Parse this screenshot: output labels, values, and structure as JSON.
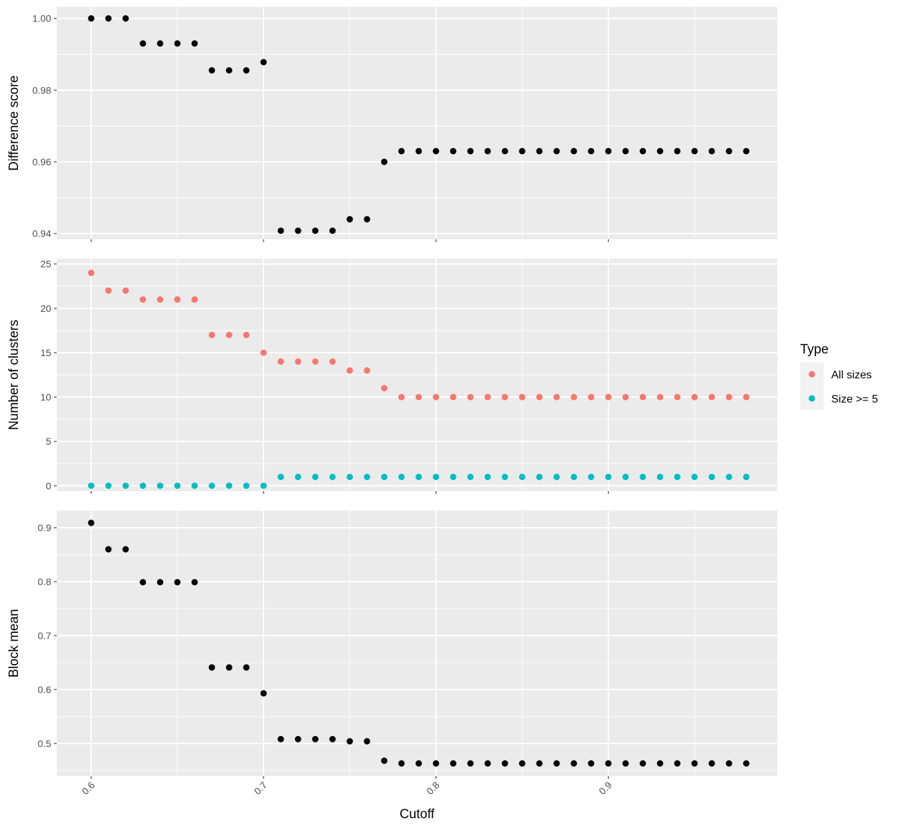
{
  "chart_data": {
    "type": "scatter",
    "xlabel": "Cutoff",
    "x_ticks": [
      0.6,
      0.7,
      0.8,
      0.9
    ],
    "x_tick_labels": [
      "0.6",
      "0.7",
      "0.8",
      "0.9"
    ],
    "xlim": [
      0.58,
      0.998
    ],
    "x": [
      0.6,
      0.61,
      0.62,
      0.63,
      0.64,
      0.65,
      0.66,
      0.67,
      0.68,
      0.69,
      0.7,
      0.71,
      0.72,
      0.73,
      0.74,
      0.75,
      0.76,
      0.77,
      0.78,
      0.79,
      0.8,
      0.81,
      0.82,
      0.83,
      0.84,
      0.85,
      0.86,
      0.87,
      0.88,
      0.89,
      0.9,
      0.91,
      0.92,
      0.93,
      0.94,
      0.95,
      0.96,
      0.97,
      0.98
    ],
    "panels": [
      {
        "id": "difference",
        "ylabel": "Difference score",
        "ylim": [
          0.9384,
          1.0032
        ],
        "y_ticks": [
          0.94,
          0.96,
          0.98,
          1.0
        ],
        "y_tick_labels": [
          "0.94",
          "0.96",
          "0.98",
          "1.00"
        ],
        "series": [
          {
            "color": "#000000",
            "values": [
              1.0,
              1.0,
              1.0,
              0.993,
              0.993,
              0.993,
              0.993,
              0.9855,
              0.9855,
              0.9855,
              0.9878,
              0.9408,
              0.9408,
              0.9408,
              0.9408,
              0.944,
              0.944,
              0.96,
              0.963,
              0.963,
              0.963,
              0.963,
              0.963,
              0.963,
              0.963,
              0.963,
              0.963,
              0.963,
              0.963,
              0.963,
              0.963,
              0.963,
              0.963,
              0.963,
              0.963,
              0.963,
              0.963,
              0.963,
              0.963
            ]
          }
        ]
      },
      {
        "id": "clusters",
        "ylabel": "Number of clusters",
        "ylim": [
          -0.6,
          25.6
        ],
        "y_ticks": [
          0,
          5,
          10,
          15,
          20,
          25
        ],
        "y_tick_labels": [
          "0",
          "5",
          "10",
          "15",
          "20",
          "25"
        ],
        "series": [
          {
            "name": "All sizes",
            "color": "#F8766D",
            "values": [
              24,
              22,
              22,
              21,
              21,
              21,
              21,
              17,
              17,
              17,
              15,
              14,
              14,
              14,
              14,
              13,
              13,
              11,
              10,
              10,
              10,
              10,
              10,
              10,
              10,
              10,
              10,
              10,
              10,
              10,
              10,
              10,
              10,
              10,
              10,
              10,
              10,
              10,
              10
            ]
          },
          {
            "name": "Size >= 5",
            "color": "#00BFC4",
            "values": [
              0,
              0,
              0,
              0,
              0,
              0,
              0,
              0,
              0,
              0,
              0,
              1,
              1,
              1,
              1,
              1,
              1,
              1,
              1,
              1,
              1,
              1,
              1,
              1,
              1,
              1,
              1,
              1,
              1,
              1,
              1,
              1,
              1,
              1,
              1,
              1,
              1,
              1,
              1
            ]
          }
        ]
      },
      {
        "id": "blockmean",
        "ylabel": "Block mean",
        "ylim": [
          0.4396,
          0.932
        ],
        "y_ticks": [
          0.5,
          0.6,
          0.7,
          0.8,
          0.9
        ],
        "y_tick_labels": [
          "0.5",
          "0.6",
          "0.7",
          "0.8",
          "0.9"
        ],
        "series": [
          {
            "color": "#000000",
            "values": [
              0.909,
              0.86,
              0.86,
              0.799,
              0.799,
              0.799,
              0.799,
              0.641,
              0.641,
              0.641,
              0.593,
              0.508,
              0.508,
              0.508,
              0.508,
              0.504,
              0.504,
              0.468,
              0.463,
              0.463,
              0.463,
              0.463,
              0.463,
              0.463,
              0.463,
              0.463,
              0.463,
              0.463,
              0.463,
              0.463,
              0.463,
              0.463,
              0.463,
              0.463,
              0.463,
              0.463,
              0.463,
              0.463,
              0.463
            ]
          }
        ]
      }
    ],
    "legend": {
      "title": "Type",
      "position": "right",
      "entries": [
        {
          "label": "All sizes",
          "color": "#F8766D"
        },
        {
          "label": "Size >= 5",
          "color": "#00BFC4"
        }
      ]
    },
    "grid": true
  }
}
